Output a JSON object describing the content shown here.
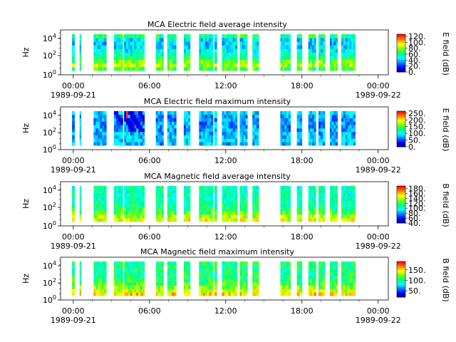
{
  "colormap": [
    "#000080",
    "#0000ff",
    "#0080ff",
    "#00ffff",
    "#00ff80",
    "#80ff00",
    "#ffff00",
    "#ff8000",
    "#ff0000"
  ],
  "chart_data": [
    {
      "type": "heatmap",
      "title": "MCA  Electric field average intensity",
      "ylabel": "Hz",
      "yticks": [
        "10^4",
        "10^2",
        "10^0"
      ],
      "ylim": [
        1,
        40000
      ],
      "xticks": [
        "00:00",
        "06:00",
        "12:00",
        "18:00",
        "00:00"
      ],
      "date_start": "1989-09-21",
      "date_end": "1989-09-22",
      "colorbar_label": "E field (dB)",
      "colorbar_ticks": [
        "120.",
        "100.",
        "80.",
        "60.",
        "40.",
        "20.",
        "0."
      ],
      "clim": [
        0,
        127
      ],
      "data_intervals_hours": [
        [
          -0.1,
          0.1
        ],
        [
          0.5,
          0.6
        ],
        [
          1.6,
          2.6
        ],
        [
          3.2,
          3.9
        ],
        [
          4.0,
          5.6
        ],
        [
          6.5,
          7.1
        ],
        [
          7.4,
          8.1
        ],
        [
          8.7,
          9.2
        ],
        [
          9.9,
          11.0
        ],
        [
          11.1,
          11.3
        ],
        [
          11.7,
          12.9
        ],
        [
          13.1,
          13.7
        ],
        [
          14.1,
          14.6
        ],
        [
          16.3,
          17.1
        ],
        [
          17.6,
          18.0
        ],
        [
          18.5,
          19.1
        ],
        [
          19.3,
          19.8
        ],
        [
          20.2,
          20.8
        ],
        [
          21.1,
          22.2
        ]
      ]
    },
    {
      "type": "heatmap",
      "title": "MCA  Electric field maximum intensity",
      "ylabel": "Hz",
      "yticks": [
        "10^4",
        "10^2",
        "10^0"
      ],
      "ylim": [
        1,
        40000
      ],
      "xticks": [
        "00:00",
        "06:00",
        "12:00",
        "18:00",
        "00:00"
      ],
      "date_start": "1989-09-21",
      "date_end": "1989-09-22",
      "colorbar_label": "E field (dB)",
      "colorbar_ticks": [
        "250.",
        "200.",
        "150.",
        "100.",
        "50.",
        "0."
      ],
      "clim": [
        0,
        265
      ],
      "data_intervals_hours": [
        [
          -0.1,
          0.1
        ],
        [
          0.5,
          0.6
        ],
        [
          1.6,
          2.6
        ],
        [
          3.2,
          3.9
        ],
        [
          4.0,
          5.6
        ],
        [
          6.5,
          7.1
        ],
        [
          7.4,
          8.1
        ],
        [
          8.7,
          9.2
        ],
        [
          9.9,
          11.0
        ],
        [
          11.1,
          11.3
        ],
        [
          11.7,
          12.9
        ],
        [
          13.1,
          13.7
        ],
        [
          14.1,
          14.6
        ],
        [
          16.3,
          17.1
        ],
        [
          17.6,
          18.0
        ],
        [
          18.5,
          19.1
        ],
        [
          19.3,
          19.8
        ],
        [
          20.2,
          20.8
        ],
        [
          21.1,
          22.2
        ]
      ]
    },
    {
      "type": "heatmap",
      "title": "MCA  Magnetic field average intensity",
      "ylabel": "Hz",
      "yticks": [
        "10^4",
        "10^2",
        "10^0"
      ],
      "ylim": [
        1,
        40000
      ],
      "xticks": [
        "00:00",
        "06:00",
        "12:00",
        "18:00",
        "00:00"
      ],
      "date_start": "1989-09-21",
      "date_end": "1989-09-22",
      "colorbar_label": "B field (dB)",
      "colorbar_ticks": [
        "180.",
        "160.",
        "140.",
        "120.",
        "100.",
        "80.",
        "60.",
        "40."
      ],
      "clim": [
        40,
        190
      ],
      "data_intervals_hours": [
        [
          -0.1,
          0.1
        ],
        [
          0.5,
          0.6
        ],
        [
          1.6,
          2.6
        ],
        [
          3.2,
          3.9
        ],
        [
          4.0,
          5.6
        ],
        [
          6.5,
          7.1
        ],
        [
          7.4,
          8.1
        ],
        [
          8.7,
          9.2
        ],
        [
          9.9,
          11.0
        ],
        [
          11.1,
          11.3
        ],
        [
          11.7,
          12.9
        ],
        [
          13.1,
          13.7
        ],
        [
          14.1,
          14.6
        ],
        [
          16.3,
          17.1
        ],
        [
          17.6,
          18.0
        ],
        [
          18.5,
          19.1
        ],
        [
          19.3,
          19.8
        ],
        [
          20.2,
          20.8
        ],
        [
          21.1,
          22.2
        ]
      ]
    },
    {
      "type": "heatmap",
      "title": "MCA  Magnetic field maximum intensity",
      "ylabel": "Hz",
      "yticks": [
        "10^4",
        "10^2",
        "10^0"
      ],
      "ylim": [
        1,
        40000
      ],
      "xticks": [
        "00:00",
        "06:00",
        "12:00",
        "18:00",
        "00:00"
      ],
      "date_start": "1989-09-21",
      "date_end": "1989-09-22",
      "colorbar_label": "B field (dB)",
      "colorbar_ticks": [
        "150.",
        "100.",
        "50."
      ],
      "clim": [
        20,
        190
      ],
      "data_intervals_hours": [
        [
          -0.1,
          0.1
        ],
        [
          0.5,
          0.6
        ],
        [
          1.6,
          2.6
        ],
        [
          3.2,
          3.9
        ],
        [
          4.0,
          5.6
        ],
        [
          6.5,
          7.1
        ],
        [
          7.4,
          8.1
        ],
        [
          8.7,
          9.2
        ],
        [
          9.9,
          11.0
        ],
        [
          11.1,
          11.3
        ],
        [
          11.7,
          12.9
        ],
        [
          13.1,
          13.7
        ],
        [
          14.1,
          14.6
        ],
        [
          16.3,
          17.1
        ],
        [
          17.6,
          18.0
        ],
        [
          18.5,
          19.1
        ],
        [
          19.3,
          19.8
        ],
        [
          20.2,
          20.8
        ],
        [
          21.1,
          22.2
        ]
      ]
    }
  ]
}
